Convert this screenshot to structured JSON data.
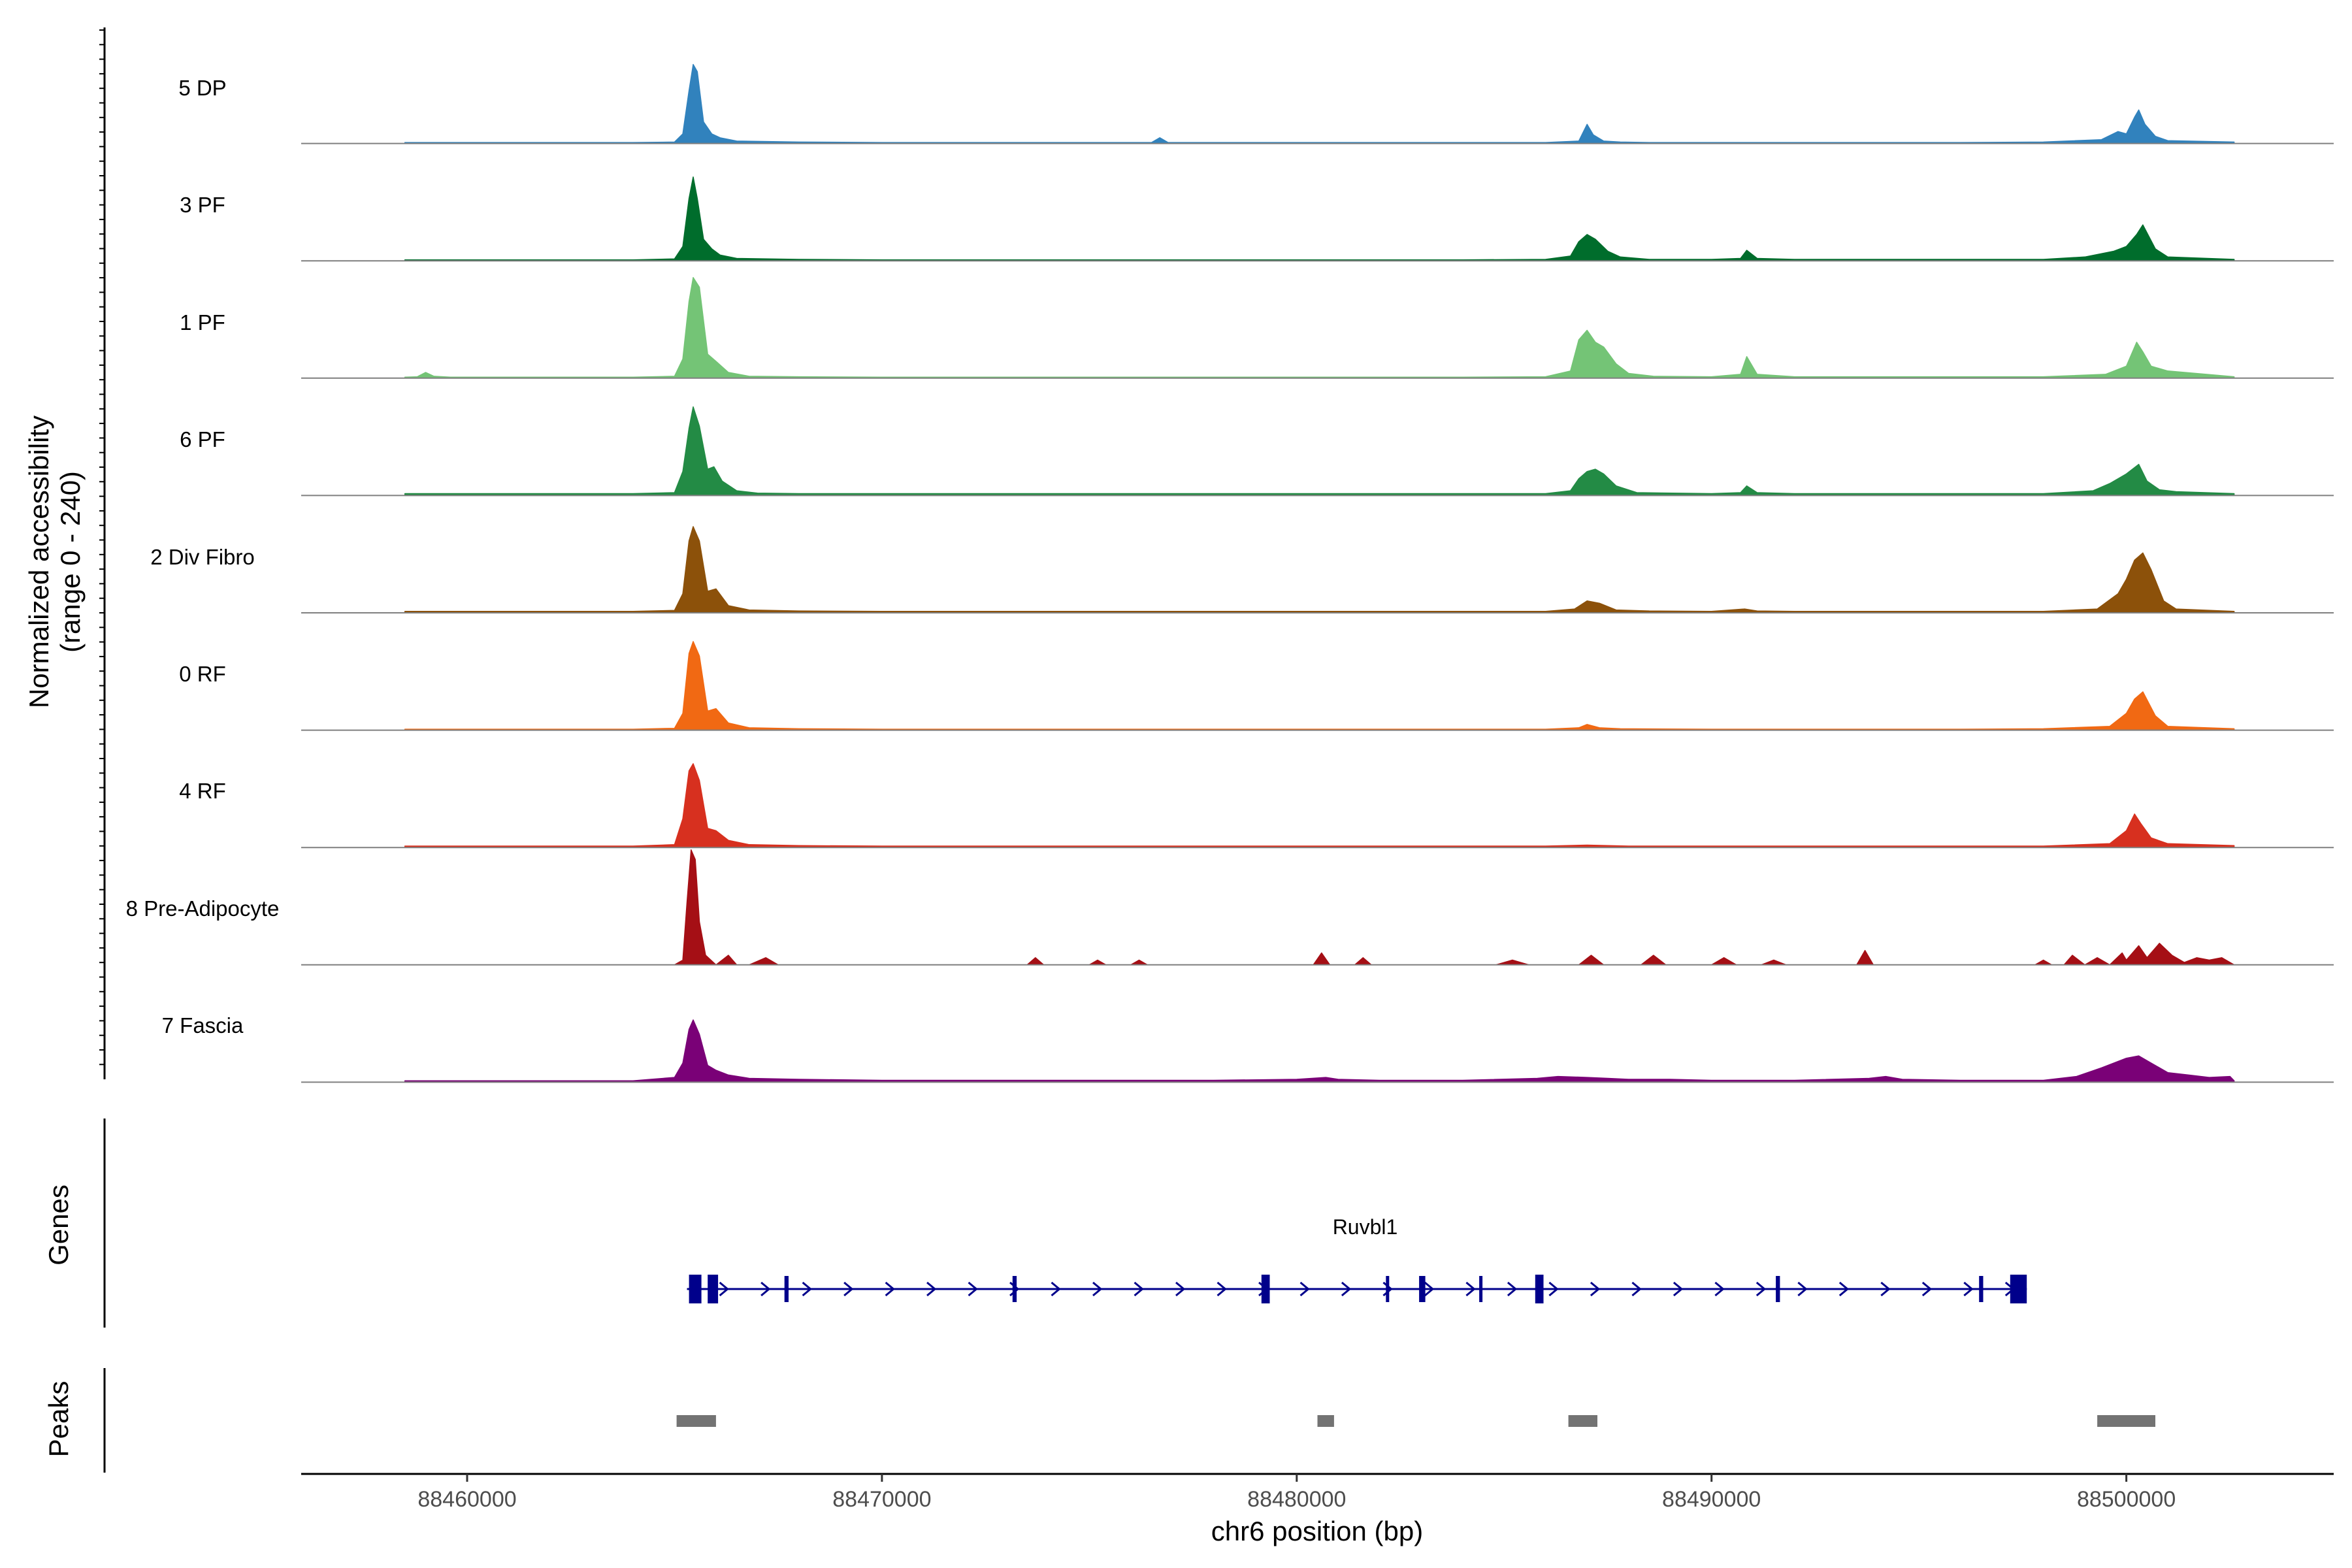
{
  "chart_data": {
    "type": "area",
    "chromosome": "chr6",
    "xlim": [
      88456000,
      88505000
    ],
    "x_ticks": [
      88460000,
      88470000,
      88480000,
      88490000,
      88500000
    ],
    "x_tick_labels": [
      "88460000",
      "88470000",
      "88480000",
      "88490000",
      "88500000"
    ],
    "xlabel": "chr6 position (bp)",
    "ylabel_line1": "Normalized accessibility",
    "ylabel_line2": "(range 0 - 240)",
    "ylim": [
      0,
      240
    ],
    "genes_label": "Genes",
    "peaks_label": "Peaks",
    "series": [
      {
        "name": "5 DP",
        "color": "#3182bd",
        "x": [
          88458500,
          88460000,
          88462000,
          88464000,
          88465000,
          88465200,
          88465350,
          88465450,
          88465550,
          88465700,
          88465900,
          88466100,
          88466500,
          88468000,
          88470000,
          88472000,
          88474000,
          88476500,
          88476700,
          88476900,
          88478000,
          88480000,
          88482000,
          88484000,
          88486000,
          88486800,
          88487000,
          88487150,
          88487400,
          88487800,
          88488500,
          88490000,
          88492000,
          88494000,
          88496000,
          88498000,
          88499400,
          88499800,
          88500000,
          88500200,
          88500300,
          88500450,
          88500700,
          88501000,
          88502600
        ],
        "values": [
          2,
          2,
          2,
          2,
          3,
          20,
          110,
          165,
          150,
          45,
          20,
          12,
          5,
          3,
          2,
          2,
          2,
          2,
          12,
          2,
          2,
          2,
          2,
          2,
          2,
          5,
          40,
          18,
          5,
          3,
          2,
          2,
          2,
          2,
          2,
          3,
          8,
          25,
          20,
          55,
          70,
          40,
          15,
          6,
          3
        ]
      },
      {
        "name": "3 PF",
        "color": "#006d2c",
        "x": [
          88458500,
          88460000,
          88462000,
          88464000,
          88465000,
          88465200,
          88465350,
          88465450,
          88465550,
          88465700,
          88465900,
          88466100,
          88466500,
          88468000,
          88470000,
          88472000,
          88474000,
          88476000,
          88478000,
          88480000,
          88482000,
          88484000,
          88486000,
          88486600,
          88486800,
          88487000,
          88487200,
          88487500,
          88487800,
          88488500,
          88490000,
          88490700,
          88490850,
          88491100,
          88492000,
          88494000,
          88496000,
          88498000,
          88499000,
          88499700,
          88500000,
          88500250,
          88500400,
          88500700,
          88501000,
          88502600
        ],
        "values": [
          2,
          2,
          2,
          2,
          4,
          30,
          130,
          175,
          130,
          45,
          25,
          12,
          5,
          3,
          2,
          2,
          2,
          2,
          2,
          2,
          2,
          2,
          3,
          10,
          40,
          55,
          45,
          20,
          8,
          3,
          3,
          5,
          22,
          5,
          3,
          3,
          3,
          3,
          8,
          20,
          30,
          55,
          75,
          25,
          8,
          3
        ]
      },
      {
        "name": "1 PF",
        "color": "#74c476",
        "x": [
          88458500,
          88458800,
          88459000,
          88459200,
          88459600,
          88462000,
          88464000,
          88465000,
          88465200,
          88465350,
          88465450,
          88465600,
          88465800,
          88466000,
          88466300,
          88466800,
          88468000,
          88470000,
          88472000,
          88474000,
          88476000,
          88478000,
          88480000,
          88482000,
          88484000,
          88486000,
          88486600,
          88486800,
          88487000,
          88487200,
          88487400,
          88487700,
          88488000,
          88488600,
          88490000,
          88490700,
          88490850,
          88491100,
          88492000,
          88494000,
          88496000,
          88498000,
          88499500,
          88500000,
          88500250,
          88500400,
          88500600,
          88501000,
          88502600
        ],
        "values": [
          2,
          3,
          12,
          4,
          2,
          2,
          2,
          4,
          40,
          160,
          210,
          190,
          50,
          35,
          12,
          4,
          3,
          2,
          2,
          2,
          2,
          2,
          2,
          2,
          2,
          3,
          15,
          80,
          100,
          75,
          65,
          30,
          10,
          4,
          3,
          8,
          45,
          8,
          3,
          3,
          3,
          3,
          8,
          25,
          75,
          55,
          25,
          15,
          3
        ]
      },
      {
        "name": "6 PF",
        "color": "#238b45",
        "x": [
          88458500,
          88460000,
          88462000,
          88464000,
          88465000,
          88465200,
          88465350,
          88465450,
          88465600,
          88465800,
          88465950,
          88466150,
          88466500,
          88467000,
          88468000,
          88470000,
          88472000,
          88474000,
          88476000,
          88478000,
          88480000,
          88482000,
          88484000,
          88486000,
          88486600,
          88486800,
          88487000,
          88487200,
          88487400,
          88487700,
          88488200,
          88490000,
          88490700,
          88490850,
          88491100,
          88492000,
          88494000,
          88496000,
          88498000,
          88499200,
          88499600,
          88500000,
          88500300,
          88500500,
          88500800,
          88501200,
          88502600
        ],
        "values": [
          4,
          4,
          4,
          4,
          6,
          50,
          140,
          185,
          145,
          55,
          60,
          30,
          10,
          5,
          4,
          4,
          4,
          4,
          4,
          4,
          4,
          4,
          4,
          4,
          10,
          35,
          50,
          55,
          45,
          20,
          6,
          4,
          6,
          20,
          6,
          4,
          4,
          4,
          4,
          10,
          25,
          45,
          65,
          30,
          12,
          8,
          4
        ]
      },
      {
        "name": "2 Div Fibro",
        "color": "#8c510a",
        "x": [
          88458500,
          88460000,
          88462000,
          88464000,
          88465000,
          88465200,
          88465350,
          88465450,
          88465600,
          88465800,
          88466000,
          88466300,
          88466800,
          88468000,
          88470000,
          88472000,
          88474000,
          88476000,
          88478000,
          88480000,
          88482000,
          88484000,
          88486000,
          88486700,
          88487000,
          88487300,
          88487700,
          88488500,
          88490000,
          88490800,
          88491100,
          88492000,
          88494000,
          88496000,
          88498000,
          88499300,
          88499800,
          88500000,
          88500200,
          88500400,
          88500600,
          88500900,
          88501200,
          88502600
        ],
        "values": [
          3,
          3,
          3,
          3,
          5,
          40,
          150,
          180,
          150,
          45,
          50,
          15,
          6,
          4,
          3,
          3,
          3,
          3,
          3,
          3,
          3,
          3,
          3,
          8,
          25,
          20,
          6,
          4,
          3,
          8,
          4,
          3,
          3,
          3,
          3,
          8,
          40,
          70,
          110,
          125,
          90,
          25,
          8,
          3
        ]
      },
      {
        "name": "0 RF",
        "color": "#f16913",
        "x": [
          88458500,
          88460000,
          88462000,
          88464000,
          88465000,
          88465200,
          88465350,
          88465450,
          88465600,
          88465800,
          88466000,
          88466300,
          88466800,
          88468000,
          88470000,
          88472000,
          88474000,
          88476000,
          88478000,
          88480000,
          88482000,
          88484000,
          88486000,
          88486800,
          88487000,
          88487300,
          88487800,
          88490000,
          88492000,
          88494000,
          88496000,
          88498000,
          88499600,
          88500000,
          88500200,
          88500400,
          88500700,
          88501000,
          88502600
        ],
        "values": [
          2,
          2,
          2,
          2,
          4,
          35,
          160,
          185,
          155,
          40,
          45,
          15,
          5,
          3,
          2,
          2,
          2,
          2,
          2,
          2,
          2,
          2,
          2,
          5,
          12,
          5,
          3,
          2,
          2,
          2,
          2,
          3,
          8,
          35,
          65,
          80,
          30,
          8,
          3
        ]
      },
      {
        "name": "4 RF",
        "color": "#d7301f",
        "x": [
          88458500,
          88460000,
          88462000,
          88464000,
          88465000,
          88465200,
          88465350,
          88465450,
          88465600,
          88465800,
          88466000,
          88466300,
          88466800,
          88468000,
          88470000,
          88472000,
          88474000,
          88476000,
          88478000,
          88480000,
          88482000,
          88484000,
          88486000,
          88487000,
          88488000,
          88490000,
          88492000,
          88494000,
          88496000,
          88498000,
          88499600,
          88500000,
          88500200,
          88500350,
          88500600,
          88501000,
          88502600
        ],
        "values": [
          3,
          3,
          3,
          3,
          6,
          60,
          160,
          175,
          140,
          40,
          35,
          15,
          6,
          4,
          3,
          3,
          3,
          3,
          3,
          3,
          3,
          3,
          3,
          5,
          3,
          3,
          3,
          3,
          3,
          3,
          8,
          35,
          70,
          50,
          20,
          8,
          4
        ]
      },
      {
        "name": "8 Pre-Adipocyte",
        "color": "#a50f15",
        "x": [
          88465000,
          88465200,
          88465300,
          88465400,
          88465500,
          88465600,
          88465750,
          88466000,
          88466300,
          88466500,
          88466800,
          88467200,
          88467500,
          88468000,
          88473500,
          88473700,
          88473900,
          88475000,
          88475200,
          88475400,
          88476000,
          88476200,
          88476400,
          88480400,
          88480600,
          88480800,
          88481400,
          88481600,
          88481800,
          88484800,
          88485200,
          88485600,
          88486800,
          88487100,
          88487400,
          88488300,
          88488600,
          88488900,
          88490000,
          88490300,
          88490600,
          88491200,
          88491500,
          88491800,
          88493500,
          88493700,
          88493900,
          88497800,
          88498000,
          88498200,
          88498500,
          88498700,
          88499000,
          88499300,
          88499600,
          88499900,
          88500000,
          88500300,
          88500500,
          88500800,
          88501100,
          88501400,
          88501700,
          88502000,
          88502300,
          88502600
        ],
        "values": [
          0,
          10,
          130,
          240,
          220,
          90,
          20,
          0,
          20,
          0,
          0,
          15,
          0,
          0,
          0,
          15,
          0,
          0,
          10,
          0,
          0,
          10,
          0,
          0,
          25,
          0,
          0,
          15,
          0,
          0,
          10,
          0,
          0,
          20,
          0,
          0,
          20,
          0,
          0,
          15,
          0,
          0,
          10,
          0,
          0,
          30,
          0,
          0,
          10,
          0,
          0,
          20,
          0,
          15,
          0,
          25,
          10,
          40,
          15,
          45,
          20,
          5,
          15,
          10,
          15,
          0
        ]
      },
      {
        "name": "7 Fascia",
        "color": "#7a0177",
        "x": [
          88458500,
          88460000,
          88462000,
          88464000,
          88465000,
          88465200,
          88465350,
          88465450,
          88465600,
          88465800,
          88466000,
          88466300,
          88466800,
          88468000,
          88470000,
          88472000,
          88474000,
          88476000,
          88478000,
          88480000,
          88480700,
          88481000,
          88482000,
          88484000,
          88485800,
          88486300,
          88487000,
          88487500,
          88488000,
          88489000,
          88490000,
          88492000,
          88493800,
          88494200,
          88494600,
          88496000,
          88498000,
          88498800,
          88499400,
          88500000,
          88500300,
          88500600,
          88501000,
          88501500,
          88502000,
          88502500,
          88502600
        ],
        "values": [
          3,
          3,
          3,
          3,
          10,
          40,
          110,
          130,
          100,
          35,
          25,
          15,
          8,
          6,
          4,
          4,
          4,
          4,
          4,
          6,
          10,
          6,
          4,
          4,
          8,
          12,
          10,
          8,
          6,
          6,
          4,
          4,
          8,
          12,
          6,
          4,
          4,
          12,
          30,
          50,
          55,
          40,
          20,
          15,
          10,
          12,
          3
        ]
      }
    ],
    "gene": {
      "name": "Ruvbl1",
      "color": "#00008b",
      "start": 88465300,
      "end": 88497600,
      "strand": "+",
      "exons": [
        [
          88465350,
          88465650
        ],
        [
          88465800,
          88466050
        ],
        [
          88467650,
          88467750
        ],
        [
          88473150,
          88473250
        ],
        [
          88479150,
          88479350
        ],
        [
          88482150,
          88482200
        ],
        [
          88482950,
          88483100
        ],
        [
          88484400,
          88484450
        ],
        [
          88485750,
          88485950
        ],
        [
          88491550,
          88491650
        ],
        [
          88496450,
          88496550
        ],
        [
          88497200,
          88497600
        ]
      ]
    },
    "peaks": {
      "color": "#737373",
      "regions": [
        [
          88465050,
          88466000
        ],
        [
          88480500,
          88480900
        ],
        [
          88486550,
          88487250
        ],
        [
          88499300,
          88500700
        ]
      ]
    }
  }
}
